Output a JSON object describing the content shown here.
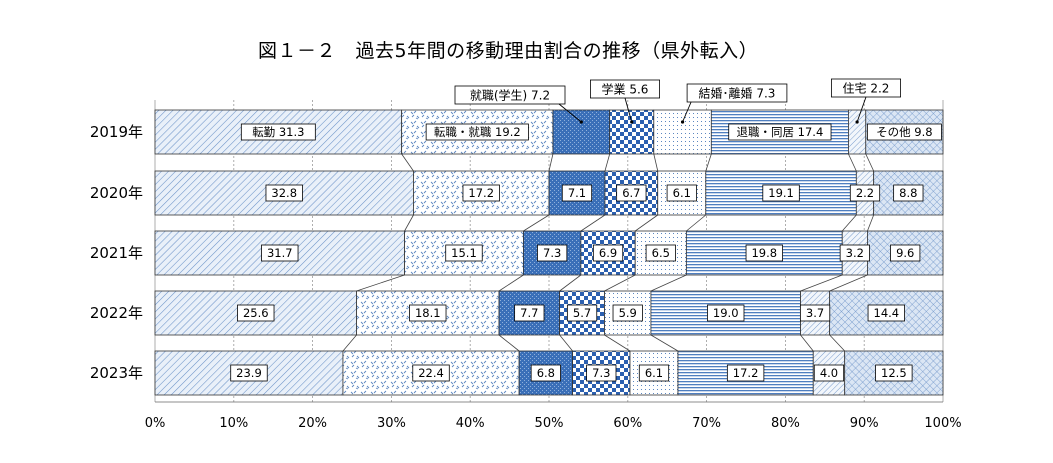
{
  "title": "図１－２　過去5年間の移動理由割合の推移（県外転入）",
  "chart_data": {
    "type": "bar",
    "orientation": "horizontal",
    "stacked": true,
    "normalized_percent": true,
    "categories": [
      "2019年",
      "2020年",
      "2021年",
      "2022年",
      "2023年"
    ],
    "series": [
      {
        "name": "転勤",
        "first_label": "転勤 31.3",
        "values": [
          31.3,
          32.8,
          31.7,
          25.6,
          23.9
        ],
        "labels": [
          "",
          "32.8",
          "31.7",
          "25.6",
          "23.9"
        ],
        "pattern": "diag",
        "color": "#5b86c0"
      },
      {
        "name": "転職・就職",
        "first_label": "転職・就職 19.2",
        "values": [
          19.2,
          17.2,
          15.1,
          18.1,
          22.4
        ],
        "labels": [
          "",
          "17.2",
          "15.1",
          "18.1",
          "22.4"
        ],
        "pattern": "cross",
        "color": "#5b86c0"
      },
      {
        "name": "就職(学生)",
        "first_label": "就職(学生) 7.2",
        "values": [
          7.2,
          7.1,
          7.3,
          7.7,
          6.8
        ],
        "labels": [
          "",
          "7.1",
          "7.3",
          "7.7",
          "6.8"
        ],
        "pattern": "solid",
        "color": "#3a6fb8"
      },
      {
        "name": "学業",
        "first_label": "学業 5.6",
        "values": [
          5.6,
          6.7,
          6.9,
          5.7,
          7.3
        ],
        "labels": [
          "",
          "6.7",
          "6.9",
          "5.7",
          "7.3"
        ],
        "pattern": "checker",
        "color": "#2c60b0"
      },
      {
        "name": "結婚・離婚",
        "first_label": "結婚･離婚 7.3",
        "values": [
          7.3,
          6.1,
          6.5,
          5.9,
          6.1
        ],
        "labels": [
          "",
          "6.1",
          "6.5",
          "5.9",
          "6.1"
        ],
        "pattern": "dots",
        "color": "#5b86c0"
      },
      {
        "name": "退職・同居",
        "first_label": "退職・同居 17.4",
        "values": [
          17.4,
          19.1,
          19.8,
          19.0,
          17.2
        ],
        "labels": [
          "",
          "19.1",
          "19.8",
          "19.0",
          "17.2"
        ],
        "pattern": "hlines",
        "color": "#4f7fc0"
      },
      {
        "name": "住宅",
        "first_label": "住宅 2.2",
        "values": [
          2.2,
          2.2,
          3.2,
          3.7,
          4.0
        ],
        "labels": [
          "",
          "2.2",
          "3.2",
          "3.7",
          "4.0"
        ],
        "pattern": "diag2",
        "color": "#5b86c0"
      },
      {
        "name": "その他",
        "first_label": "その他 9.8",
        "values": [
          9.8,
          8.8,
          9.6,
          14.4,
          12.5
        ],
        "labels": [
          "",
          "8.8",
          "9.6",
          "14.4",
          "12.5"
        ],
        "pattern": "grid",
        "color": "#5b86c0"
      }
    ],
    "xlim": [
      0,
      100
    ],
    "xticks": [
      "0%",
      "10%",
      "20%",
      "30%",
      "40%",
      "50%",
      "60%",
      "70%",
      "80%",
      "90%",
      "100%"
    ],
    "callouts": [
      "就職(学生) 7.2",
      "学業 5.6",
      "結婚･離婚 7.3",
      "住宅 2.2"
    ]
  }
}
